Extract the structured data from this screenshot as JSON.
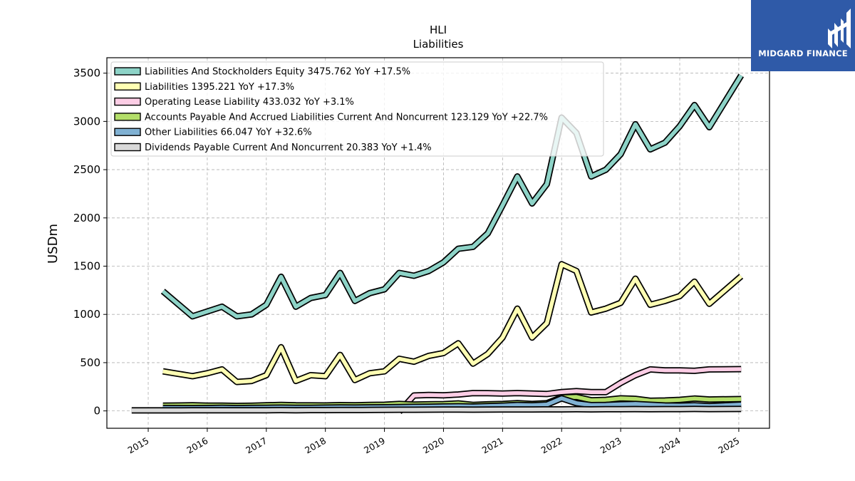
{
  "brand": {
    "name": "MIDGARD FINANCE",
    "bg": "#2f5aa8"
  },
  "chart_data": {
    "type": "line",
    "title": "HLI",
    "subtitle": "Liabilities",
    "ylabel": "USDm",
    "xlabel": "",
    "ylim": [
      -180,
      3660
    ],
    "xlim": [
      2014.3,
      2025.52
    ],
    "yticks": [
      0,
      500,
      1000,
      1500,
      2000,
      2500,
      3000,
      3500
    ],
    "xticks": [
      "2015",
      "2016",
      "2017",
      "2018",
      "2019",
      "2020",
      "2021",
      "2022",
      "2023",
      "2024",
      "2025"
    ],
    "grid": true,
    "legend_position": "top-left",
    "series": [
      {
        "name": "Liabilities And Stockholders Equity",
        "legend": "Liabilities And Stockholders Equity  3475.762 YoY +17.5%",
        "color": "#8dd3c7",
        "x": [
          2015.25,
          2015.75,
          2016.0,
          2016.25,
          2016.5,
          2016.75,
          2017.0,
          2017.25,
          2017.5,
          2017.75,
          2018.0,
          2018.25,
          2018.5,
          2018.75,
          2019.0,
          2019.25,
          2019.5,
          2019.75,
          2020.0,
          2020.25,
          2020.5,
          2020.75,
          2021.0,
          2021.25,
          2021.5,
          2021.75,
          2022.0,
          2022.25,
          2022.5,
          2022.75,
          2023.0,
          2023.25,
          2023.5,
          2023.75,
          2024.0,
          2024.25,
          2024.5,
          2025.04
        ],
        "y": [
          1240,
          980,
          1030,
          1080,
          980,
          1000,
          1100,
          1390,
          1080,
          1170,
          1200,
          1430,
          1140,
          1220,
          1260,
          1430,
          1400,
          1450,
          1540,
          1680,
          1700,
          1840,
          2130,
          2430,
          2150,
          2350,
          3040,
          2880,
          2430,
          2500,
          2660,
          2970,
          2710,
          2780,
          2950,
          3170,
          2940,
          3476
        ]
      },
      {
        "name": "Liabilities",
        "legend": "Liabilities  1395.221 YoY +17.3%",
        "color": "#ffffb3",
        "x": [
          2015.25,
          2015.75,
          2016.0,
          2016.25,
          2016.5,
          2016.75,
          2017.0,
          2017.25,
          2017.5,
          2017.75,
          2018.0,
          2018.25,
          2018.5,
          2018.75,
          2019.0,
          2019.25,
          2019.5,
          2019.75,
          2020.0,
          2020.25,
          2020.5,
          2020.75,
          2021.0,
          2021.25,
          2021.5,
          2021.75,
          2022.0,
          2022.25,
          2022.5,
          2022.75,
          2023.0,
          2023.25,
          2023.5,
          2023.75,
          2024.0,
          2024.25,
          2024.5,
          2025.04
        ],
        "y": [
          410,
          360,
          390,
          430,
          300,
          310,
          370,
          660,
          310,
          370,
          360,
          580,
          320,
          390,
          410,
          540,
          510,
          570,
          600,
          700,
          490,
          590,
          760,
          1060,
          760,
          910,
          1520,
          1450,
          1020,
          1060,
          1120,
          1370,
          1100,
          1140,
          1190,
          1340,
          1110,
          1395
        ]
      },
      {
        "name": "Operating Lease Liability",
        "legend": "Operating Lease Liability  433.032 YoY +3.1%",
        "color": "#fccde5",
        "x": [
          2019.25,
          2019.5,
          2019.75,
          2020.0,
          2020.25,
          2020.5,
          2020.75,
          2021.0,
          2021.25,
          2021.5,
          2021.75,
          2022.0,
          2022.25,
          2022.5,
          2022.75,
          2023.0,
          2023.25,
          2023.5,
          2023.75,
          2024.0,
          2024.25,
          2024.5,
          2025.04
        ],
        "y": [
          -10,
          160,
          165,
          162,
          170,
          185,
          183,
          180,
          185,
          180,
          175,
          195,
          205,
          195,
          195,
          290,
          370,
          430,
          420,
          420,
          415,
          430,
          433
        ]
      },
      {
        "name": "Accounts Payable And Accrued Liabilities Current And Noncurrent",
        "legend": "Accounts Payable And Accrued Liabilities Current And Noncurrent  123.129 YoY +22.7%",
        "color": "#b3de69",
        "x": [
          2015.25,
          2015.75,
          2016.0,
          2016.25,
          2016.5,
          2016.75,
          2017.0,
          2017.25,
          2017.5,
          2017.75,
          2018.0,
          2018.25,
          2018.5,
          2018.75,
          2019.0,
          2019.25,
          2019.5,
          2019.75,
          2020.0,
          2020.25,
          2020.5,
          2020.75,
          2021.0,
          2021.25,
          2021.5,
          2021.75,
          2022.0,
          2022.25,
          2022.5,
          2022.75,
          2023.0,
          2023.25,
          2023.5,
          2023.75,
          2024.0,
          2024.25,
          2024.5,
          2025.04
        ],
        "y": [
          55,
          58,
          55,
          54,
          52,
          53,
          58,
          62,
          58,
          57,
          56,
          60,
          58,
          62,
          64,
          72,
          66,
          68,
          70,
          78,
          62,
          68,
          72,
          80,
          72,
          80,
          140,
          145,
          110,
          115,
          130,
          125,
          105,
          108,
          115,
          128,
          118,
          123
        ]
      },
      {
        "name": "Other Liabilities",
        "legend": "Other Liabilities  66.047 YoY +32.6%",
        "color": "#80b1d3",
        "x": [
          2015.25,
          2015.75,
          2016.0,
          2016.25,
          2016.5,
          2016.75,
          2017.0,
          2017.25,
          2017.5,
          2017.75,
          2018.0,
          2018.25,
          2018.5,
          2018.75,
          2019.0,
          2019.25,
          2019.5,
          2019.75,
          2020.0,
          2020.25,
          2020.5,
          2020.75,
          2021.0,
          2021.25,
          2021.5,
          2021.75,
          2022.0,
          2022.25,
          2022.5,
          2022.75,
          2023.0,
          2023.25,
          2023.5,
          2023.75,
          2024.0,
          2024.25,
          2024.5,
          2025.04
        ],
        "y": [
          30,
          28,
          30,
          32,
          30,
          31,
          33,
          34,
          32,
          33,
          34,
          36,
          35,
          37,
          38,
          40,
          42,
          44,
          46,
          48,
          45,
          50,
          55,
          62,
          58,
          65,
          130,
          80,
          60,
          62,
          68,
          72,
          64,
          56,
          54,
          58,
          50,
          66
        ]
      },
      {
        "name": "Dividends Payable Current And Noncurrent",
        "legend": "Dividends Payable Current And Noncurrent  20.383 YoY +1.4%",
        "color": "#d9d9d9",
        "x": [
          2014.72,
          2015.0,
          2015.25,
          2015.5,
          2015.75,
          2016.0,
          2016.25,
          2016.5,
          2016.75,
          2017.0,
          2017.25,
          2017.5,
          2017.75,
          2018.0,
          2018.25,
          2018.5,
          2018.75,
          2019.0,
          2019.25,
          2019.5,
          2019.75,
          2020.0,
          2020.25,
          2020.5,
          2020.75,
          2021.0,
          2021.25,
          2021.5,
          2021.75,
          2022.0,
          2022.25,
          2022.5,
          2022.75,
          2023.0,
          2023.25,
          2023.5,
          2023.75,
          2024.0,
          2024.25,
          2024.5,
          2025.04
        ],
        "y": [
          5,
          5,
          5,
          5,
          6,
          6,
          7,
          6,
          7,
          7,
          8,
          7,
          8,
          8,
          9,
          9,
          10,
          11,
          12,
          12,
          13,
          14,
          14,
          13,
          14,
          15,
          15,
          15,
          16,
          16,
          17,
          16,
          17,
          18,
          19,
          18,
          19,
          19,
          20,
          19,
          20
        ]
      }
    ]
  }
}
